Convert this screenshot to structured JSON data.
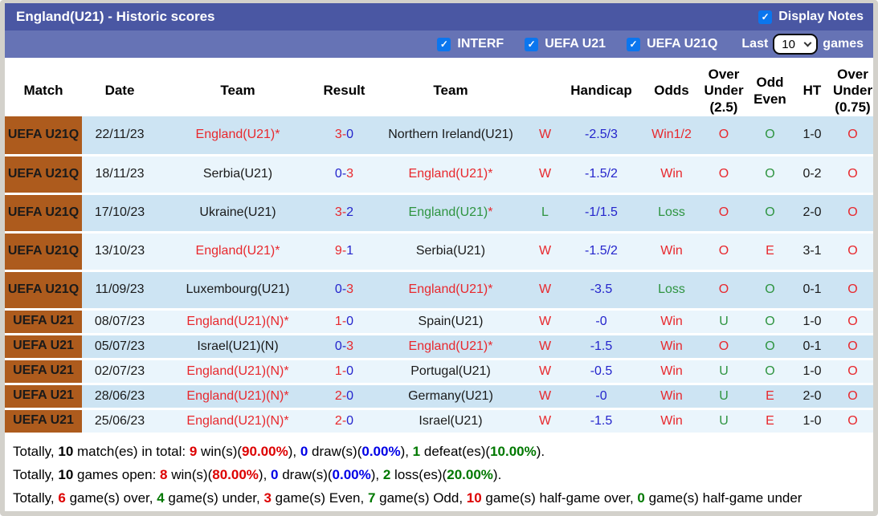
{
  "colors": {
    "bar1": "#4a57a3",
    "bar2": "#6673b5",
    "frame": "#d3d1cb",
    "orange": "#ad5b1d",
    "row-dark": "#cde4f3",
    "row-light": "#eaf5fc",
    "red": "#e8282d",
    "blue": "#2424cc",
    "green": "#2e9440",
    "sred": "#dd0000",
    "sblue": "#0000e6",
    "sgreen": "#007800",
    "cb": "#0b76ee",
    "cream": "#faf3e0"
  },
  "title_bar": {
    "title": "England(U21) - Historic scores",
    "display_notes_label": "Display Notes",
    "display_notes_checked": true
  },
  "filter_bar": {
    "checkboxes": [
      {
        "label": "INTERF",
        "checked": true
      },
      {
        "label": "UEFA U21",
        "checked": true
      },
      {
        "label": "UEFA U21Q",
        "checked": true
      }
    ],
    "last_label": "Last",
    "games_count": "10",
    "games_label": "games"
  },
  "table": {
    "columns": [
      "Match",
      "Date",
      "Team",
      "Result",
      "Team",
      "",
      "Handicap",
      "Odds",
      "Over\nUnder\n(2.5)",
      "Odd\nEven",
      "HT",
      "Over\nUnder\n(0.75)"
    ],
    "rows": [
      {
        "match": "UEFA\nU21Q",
        "date": "22/11/23",
        "home": {
          "name": "England(U21)",
          "star": true,
          "color": "red"
        },
        "result": {
          "h": "3",
          "a": "0",
          "hc": "red",
          "ac": "blue"
        },
        "away": {
          "name": "Northern Ireland(U21)",
          "star": false,
          "color": "black"
        },
        "wl": {
          "t": "W",
          "c": "red"
        },
        "handicap": "-2.5/3",
        "odds": {
          "t": "Win1/2",
          "c": "red"
        },
        "ou25": {
          "t": "O",
          "c": "red"
        },
        "oe": {
          "t": "O",
          "c": "green"
        },
        "ht": "1-0",
        "ou075": {
          "t": "O",
          "c": "red"
        }
      },
      {
        "match": "UEFA\nU21Q",
        "date": "18/11/23",
        "home": {
          "name": "Serbia(U21)",
          "star": false,
          "color": "black"
        },
        "result": {
          "h": "0",
          "a": "3",
          "hc": "blue",
          "ac": "red"
        },
        "away": {
          "name": "England(U21)",
          "star": true,
          "color": "red"
        },
        "wl": {
          "t": "W",
          "c": "red"
        },
        "handicap": "-1.5/2",
        "odds": {
          "t": "Win",
          "c": "red"
        },
        "ou25": {
          "t": "O",
          "c": "red"
        },
        "oe": {
          "t": "O",
          "c": "green"
        },
        "ht": "0-2",
        "ou075": {
          "t": "O",
          "c": "red"
        }
      },
      {
        "match": "UEFA\nU21Q",
        "date": "17/10/23",
        "home": {
          "name": "Ukraine(U21)",
          "star": false,
          "color": "black"
        },
        "result": {
          "h": "3",
          "a": "2",
          "hc": "red",
          "ac": "blue"
        },
        "away": {
          "name": "England(U21)",
          "star": true,
          "color": "green"
        },
        "wl": {
          "t": "L",
          "c": "green"
        },
        "handicap": "-1/1.5",
        "odds": {
          "t": "Loss",
          "c": "green"
        },
        "ou25": {
          "t": "O",
          "c": "red"
        },
        "oe": {
          "t": "O",
          "c": "green"
        },
        "ht": "2-0",
        "ou075": {
          "t": "O",
          "c": "red"
        }
      },
      {
        "match": "UEFA\nU21Q",
        "date": "13/10/23",
        "home": {
          "name": "England(U21)",
          "star": true,
          "color": "red"
        },
        "result": {
          "h": "9",
          "a": "1",
          "hc": "red",
          "ac": "blue"
        },
        "away": {
          "name": "Serbia(U21)",
          "star": false,
          "color": "black"
        },
        "wl": {
          "t": "W",
          "c": "red"
        },
        "handicap": "-1.5/2",
        "odds": {
          "t": "Win",
          "c": "red"
        },
        "ou25": {
          "t": "O",
          "c": "red"
        },
        "oe": {
          "t": "E",
          "c": "red"
        },
        "ht": "3-1",
        "ou075": {
          "t": "O",
          "c": "red"
        }
      },
      {
        "match": "UEFA\nU21Q",
        "date": "11/09/23",
        "home": {
          "name": "Luxembourg(U21)",
          "star": false,
          "color": "black"
        },
        "result": {
          "h": "0",
          "a": "3",
          "hc": "blue",
          "ac": "red"
        },
        "away": {
          "name": "England(U21)",
          "star": true,
          "color": "red"
        },
        "wl": {
          "t": "W",
          "c": "red"
        },
        "handicap": "-3.5",
        "odds": {
          "t": "Loss",
          "c": "green"
        },
        "ou25": {
          "t": "O",
          "c": "red"
        },
        "oe": {
          "t": "O",
          "c": "green"
        },
        "ht": "0-1",
        "ou075": {
          "t": "O",
          "c": "red"
        }
      },
      {
        "match": "UEFA U21",
        "date": "08/07/23",
        "home": {
          "name": "England(U21)(N)",
          "star": true,
          "color": "red"
        },
        "result": {
          "h": "1",
          "a": "0",
          "hc": "red",
          "ac": "blue"
        },
        "away": {
          "name": "Spain(U21)",
          "star": false,
          "color": "black"
        },
        "wl": {
          "t": "W",
          "c": "red"
        },
        "handicap": "-0",
        "odds": {
          "t": "Win",
          "c": "red"
        },
        "ou25": {
          "t": "U",
          "c": "green"
        },
        "oe": {
          "t": "O",
          "c": "green"
        },
        "ht": "1-0",
        "ou075": {
          "t": "O",
          "c": "red"
        }
      },
      {
        "match": "UEFA U21",
        "date": "05/07/23",
        "home": {
          "name": "Israel(U21)(N)",
          "star": false,
          "color": "black"
        },
        "result": {
          "h": "0",
          "a": "3",
          "hc": "blue",
          "ac": "red"
        },
        "away": {
          "name": "England(U21)",
          "star": true,
          "color": "red"
        },
        "wl": {
          "t": "W",
          "c": "red"
        },
        "handicap": "-1.5",
        "odds": {
          "t": "Win",
          "c": "red"
        },
        "ou25": {
          "t": "O",
          "c": "red"
        },
        "oe": {
          "t": "O",
          "c": "green"
        },
        "ht": "0-1",
        "ou075": {
          "t": "O",
          "c": "red"
        }
      },
      {
        "match": "UEFA U21",
        "date": "02/07/23",
        "home": {
          "name": "England(U21)(N)",
          "star": true,
          "color": "red"
        },
        "result": {
          "h": "1",
          "a": "0",
          "hc": "red",
          "ac": "blue"
        },
        "away": {
          "name": "Portugal(U21)",
          "star": false,
          "color": "black"
        },
        "wl": {
          "t": "W",
          "c": "red"
        },
        "handicap": "-0.5",
        "odds": {
          "t": "Win",
          "c": "red"
        },
        "ou25": {
          "t": "U",
          "c": "green"
        },
        "oe": {
          "t": "O",
          "c": "green"
        },
        "ht": "1-0",
        "ou075": {
          "t": "O",
          "c": "red"
        }
      },
      {
        "match": "UEFA U21",
        "date": "28/06/23",
        "home": {
          "name": "England(U21)(N)",
          "star": true,
          "color": "red"
        },
        "result": {
          "h": "2",
          "a": "0",
          "hc": "red",
          "ac": "blue"
        },
        "away": {
          "name": "Germany(U21)",
          "star": false,
          "color": "black"
        },
        "wl": {
          "t": "W",
          "c": "red"
        },
        "handicap": "-0",
        "odds": {
          "t": "Win",
          "c": "red"
        },
        "ou25": {
          "t": "U",
          "c": "green"
        },
        "oe": {
          "t": "E",
          "c": "red"
        },
        "ht": "2-0",
        "ou075": {
          "t": "O",
          "c": "red"
        }
      },
      {
        "match": "UEFA U21",
        "date": "25/06/23",
        "home": {
          "name": "England(U21)(N)",
          "star": true,
          "color": "red"
        },
        "result": {
          "h": "2",
          "a": "0",
          "hc": "red",
          "ac": "blue"
        },
        "away": {
          "name": "Israel(U21)",
          "star": false,
          "color": "black"
        },
        "wl": {
          "t": "W",
          "c": "red"
        },
        "handicap": "-1.5",
        "odds": {
          "t": "Win",
          "c": "red"
        },
        "ou25": {
          "t": "U",
          "c": "green"
        },
        "oe": {
          "t": "E",
          "c": "red"
        },
        "ht": "1-0",
        "ou075": {
          "t": "O",
          "c": "red"
        }
      }
    ]
  },
  "summary": [
    [
      {
        "t": "Totally, "
      },
      {
        "t": "10",
        "b": true
      },
      {
        "t": " match(es) in total: "
      },
      {
        "t": "9",
        "b": true,
        "c": "sred"
      },
      {
        "t": " win(s)("
      },
      {
        "t": "90.00%",
        "b": true,
        "c": "sred"
      },
      {
        "t": "), "
      },
      {
        "t": "0",
        "b": true,
        "c": "sblue"
      },
      {
        "t": " draw(s)("
      },
      {
        "t": "0.00%",
        "b": true,
        "c": "sblue"
      },
      {
        "t": "), "
      },
      {
        "t": "1",
        "b": true,
        "c": "sgreen"
      },
      {
        "t": " defeat(es)("
      },
      {
        "t": "10.00%",
        "b": true,
        "c": "sgreen"
      },
      {
        "t": ")."
      }
    ],
    [
      {
        "t": "Totally, "
      },
      {
        "t": "10",
        "b": true
      },
      {
        "t": " games open: "
      },
      {
        "t": "8",
        "b": true,
        "c": "sred"
      },
      {
        "t": " win(s)("
      },
      {
        "t": "80.00%",
        "b": true,
        "c": "sred"
      },
      {
        "t": "), "
      },
      {
        "t": "0",
        "b": true,
        "c": "sblue"
      },
      {
        "t": " draw(s)("
      },
      {
        "t": "0.00%",
        "b": true,
        "c": "sblue"
      },
      {
        "t": "), "
      },
      {
        "t": "2",
        "b": true,
        "c": "sgreen"
      },
      {
        "t": " loss(es)("
      },
      {
        "t": "20.00%",
        "b": true,
        "c": "sgreen"
      },
      {
        "t": ")."
      }
    ],
    [
      {
        "t": "Totally, "
      },
      {
        "t": "6",
        "b": true,
        "c": "sred"
      },
      {
        "t": " game(s) over, "
      },
      {
        "t": "4",
        "b": true,
        "c": "sgreen"
      },
      {
        "t": " game(s) under, "
      },
      {
        "t": "3",
        "b": true,
        "c": "sred"
      },
      {
        "t": " game(s) Even, "
      },
      {
        "t": "7",
        "b": true,
        "c": "sgreen"
      },
      {
        "t": " game(s) Odd, "
      },
      {
        "t": "10",
        "b": true,
        "c": "sred"
      },
      {
        "t": " game(s) half-game over, "
      },
      {
        "t": "0",
        "b": true,
        "c": "sgreen"
      },
      {
        "t": " game(s) half-game under"
      }
    ]
  ]
}
